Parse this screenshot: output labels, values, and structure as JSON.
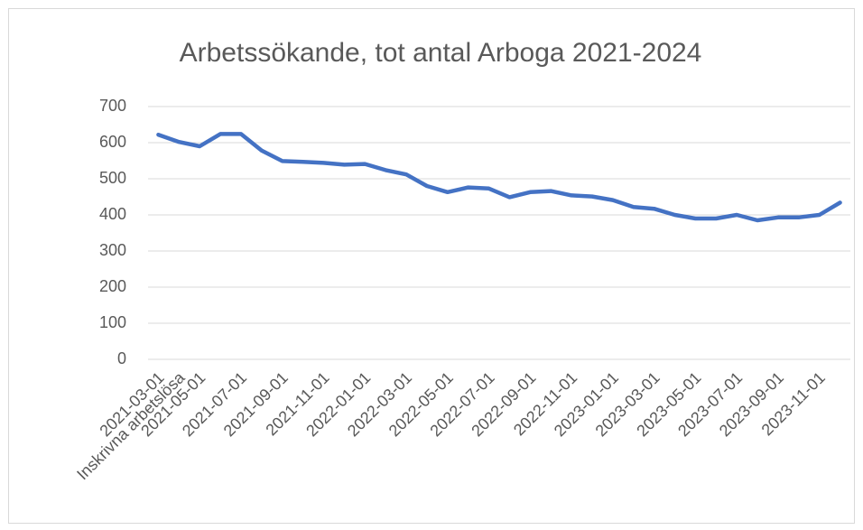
{
  "chart_data": {
    "type": "line",
    "title": "Arbetssökande, tot antal Arboga 2021-2024",
    "categories": [
      "2021-03-01",
      "Inskrivna arbetslösa",
      "2021-05-01",
      null,
      "2021-07-01",
      null,
      "2021-09-01",
      null,
      "2021-11-01",
      null,
      "2022-01-01",
      null,
      "2022-03-01",
      null,
      "2022-05-01",
      null,
      "2022-07-01",
      null,
      "2022-09-01",
      null,
      "2022-11-01",
      null,
      "2023-01-01",
      null,
      "2023-03-01",
      null,
      "2023-05-01",
      null,
      "2023-07-01",
      null,
      "2023-09-01",
      null,
      "2023-11-01",
      null
    ],
    "series": [
      {
        "name": "Inskrivna arbetslösa",
        "color": "#4472c4",
        "values": [
          622,
          602,
          590,
          624,
          624,
          578,
          549,
          547,
          544,
          539,
          541,
          524,
          512,
          480,
          463,
          476,
          473,
          449,
          463,
          466,
          454,
          451,
          441,
          422,
          417,
          400,
          390,
          390,
          400,
          385,
          393,
          393,
          400,
          434
        ]
      }
    ],
    "ylim": [
      0,
      700
    ],
    "yticks": [
      0,
      100,
      200,
      300,
      400,
      500,
      600,
      700
    ],
    "grid": true
  }
}
